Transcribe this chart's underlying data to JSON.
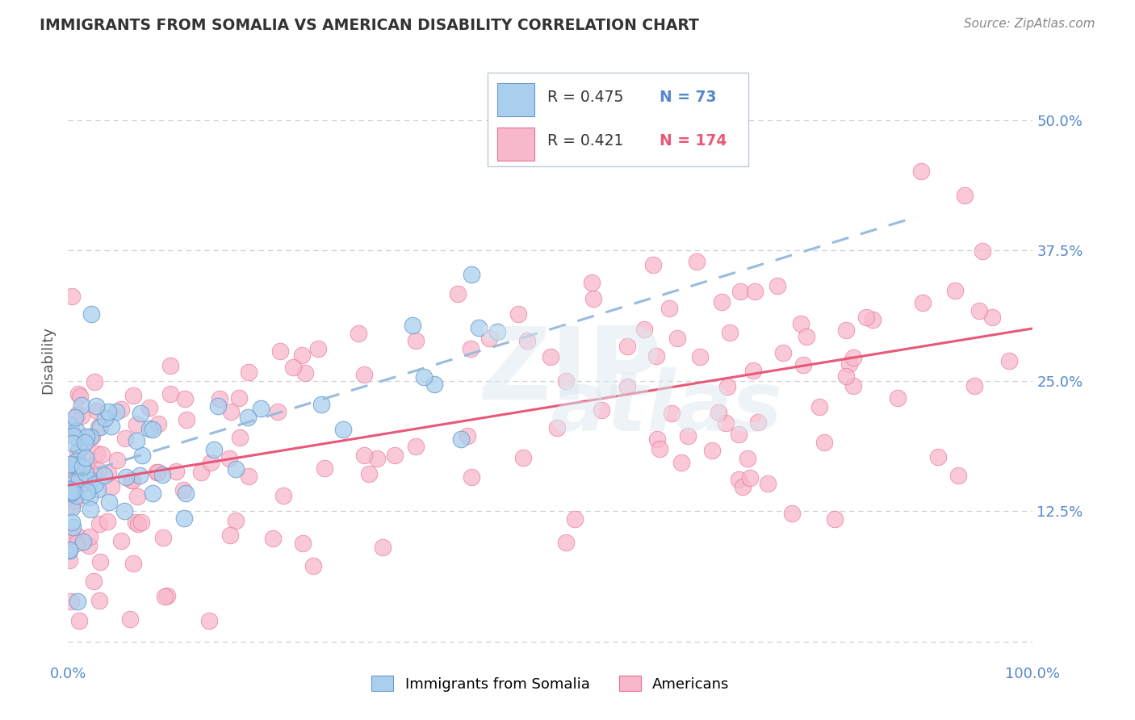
{
  "title": "IMMIGRANTS FROM SOMALIA VS AMERICAN DISABILITY CORRELATION CHART",
  "source": "Source: ZipAtlas.com",
  "ylabel": "Disability",
  "watermark_line1": "ZIP",
  "watermark_line2": "atlas",
  "legend_blue_r": "R = 0.475",
  "legend_blue_n": "N = 73",
  "legend_pink_r": "R = 0.421",
  "legend_pink_n": "N = 174",
  "xmin": 0.0,
  "xmax": 1.0,
  "ymin": -0.02,
  "ymax": 0.56,
  "yticks": [
    0.0,
    0.125,
    0.25,
    0.375,
    0.5
  ],
  "ytick_labels": [
    "",
    "12.5%",
    "25.0%",
    "37.5%",
    "50.0%"
  ],
  "xtick_labels": [
    "0.0%",
    "100.0%"
  ],
  "blue_fill": "#aacfee",
  "blue_edge": "#6699cc",
  "pink_fill": "#f8b8cc",
  "pink_edge": "#e87090",
  "blue_line_color": "#99bbdd",
  "pink_line_color": "#e85878",
  "grid_color": "#c8d0dc",
  "tick_color": "#5588cc",
  "background_color": "#ffffff",
  "blue_seed": 42,
  "pink_seed": 99,
  "blue_n": 73,
  "pink_n": 174,
  "blue_slope": 0.32,
  "blue_intercept": 0.155,
  "pink_slope": 0.115,
  "pink_intercept": 0.165
}
